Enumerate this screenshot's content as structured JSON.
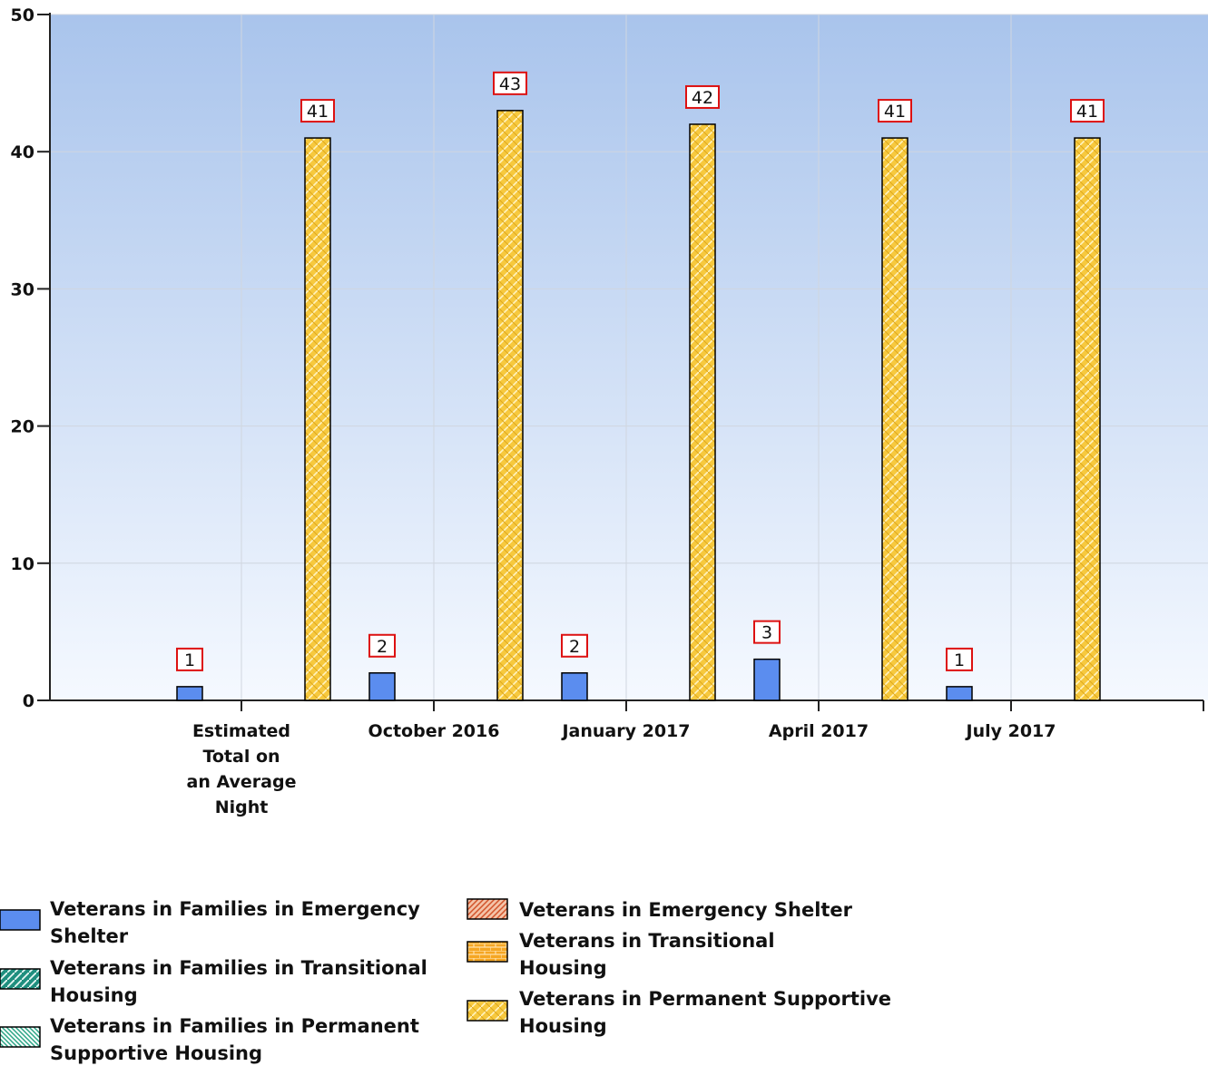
{
  "chart_data": {
    "type": "bar",
    "categories": [
      "Estimated Total on an Average Night",
      "October 2016",
      "January 2017",
      "April 2017",
      "July 2017"
    ],
    "category_label_lines": [
      [
        "Estimated",
        "Total on",
        "an Average",
        "Night"
      ],
      [
        "October 2016"
      ],
      [
        "January 2017"
      ],
      [
        "April 2017"
      ],
      [
        "July 2017"
      ]
    ],
    "series": [
      {
        "name": "Veterans in Families in Emergency Shelter",
        "legend_lines": [
          "Veterans in Families in Emergency",
          "Shelter"
        ],
        "color": "#5b8def",
        "pattern": "solid",
        "values": [
          1,
          2,
          2,
          3,
          1
        ]
      },
      {
        "name": "Veterans in Families in Transitional Housing",
        "legend_lines": [
          "Veterans in Families in Transitional",
          "Housing"
        ],
        "color": "#1f8f7f",
        "pattern": "diagonal",
        "values": [
          null,
          null,
          null,
          null,
          null
        ]
      },
      {
        "name": "Veterans in Families in Permanent Supportive Housing",
        "legend_lines": [
          "Veterans in Families in Permanent",
          "Supportive Housing"
        ],
        "color": "#7fd1b9",
        "pattern": "stripes",
        "values": [
          null,
          null,
          null,
          null,
          null
        ]
      },
      {
        "name": "Veterans in Emergency Shelter",
        "legend_lines": [
          "Veterans in Emergency Shelter"
        ],
        "color": "#e8835a",
        "pattern": "hatch",
        "values": [
          null,
          null,
          null,
          null,
          null
        ]
      },
      {
        "name": "Veterans in Transitional Housing",
        "legend_lines": [
          "Veterans in Transitional",
          "Housing"
        ],
        "color": "#f5a623",
        "pattern": "brick",
        "values": [
          null,
          null,
          null,
          null,
          null
        ]
      },
      {
        "name": "Veterans in Permanent Supportive Housing",
        "legend_lines": [
          "Veterans in Permanent Supportive",
          "Housing"
        ],
        "color": "#f7c93e",
        "pattern": "crosshatch",
        "values": [
          41,
          43,
          42,
          41,
          41
        ]
      }
    ],
    "yticks": [
      0,
      10,
      20,
      30,
      40,
      50
    ],
    "ylim": [
      0,
      50
    ],
    "grid": true,
    "legend_position": "bottom",
    "value_label_border": "#dd1111",
    "plot_background_top": "#a9c4ec",
    "plot_background_bottom": "#f5f9ff"
  }
}
